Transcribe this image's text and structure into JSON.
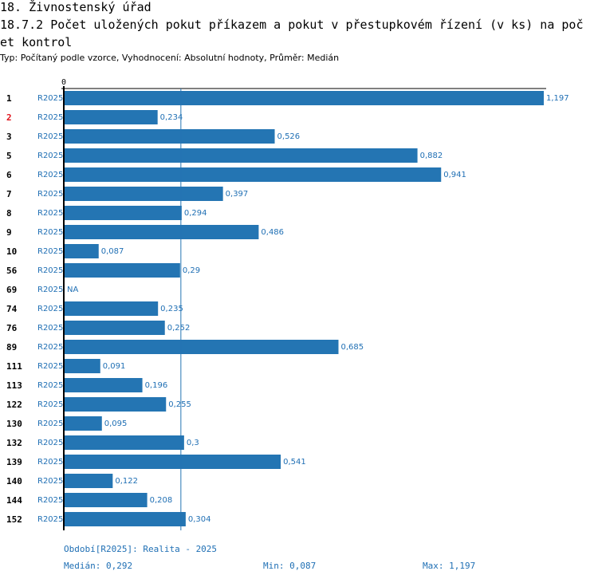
{
  "header": {
    "section_title": "18. Živnostenský úřad",
    "chart_title": "18.7.2 Počet uložených pokut příkazem a pokut v přestupkovém řízení (v ks) na počet kontrol",
    "subtitle": "Typ: Počítaný podle vzorce, Vyhodnocení: Absolutní hodnoty, Průměr: Medián"
  },
  "chart_data": {
    "type": "bar",
    "orientation": "horizontal",
    "title": "18.7.2 Počet uložených pokut příkazem a pokut v přestupkovém řízení (v ks) na počet kontrol",
    "axis_zero_label": "0",
    "xlim": [
      0,
      1.197
    ],
    "median": 0.292,
    "highlighted_row": "2",
    "colors": {
      "bar": "#2475b3",
      "label": "#1f6fb4",
      "highlight": "#e0141c",
      "axis": "#000000"
    },
    "rows": [
      {
        "id": "1",
        "period": "R2025",
        "value": 1.197,
        "label": "1,197"
      },
      {
        "id": "2",
        "period": "R2025",
        "value": 0.234,
        "label": "0,234"
      },
      {
        "id": "3",
        "period": "R2025",
        "value": 0.526,
        "label": "0,526"
      },
      {
        "id": "5",
        "period": "R2025",
        "value": 0.882,
        "label": "0,882"
      },
      {
        "id": "6",
        "period": "R2025",
        "value": 0.941,
        "label": "0,941"
      },
      {
        "id": "7",
        "period": "R2025",
        "value": 0.397,
        "label": "0,397"
      },
      {
        "id": "8",
        "period": "R2025",
        "value": 0.294,
        "label": "0,294"
      },
      {
        "id": "9",
        "period": "R2025",
        "value": 0.486,
        "label": "0,486"
      },
      {
        "id": "10",
        "period": "R2025",
        "value": 0.087,
        "label": "0,087"
      },
      {
        "id": "56",
        "period": "R2025",
        "value": 0.29,
        "label": "0,29"
      },
      {
        "id": "69",
        "period": "R2025",
        "value": null,
        "label": "NA"
      },
      {
        "id": "74",
        "period": "R2025",
        "value": 0.235,
        "label": "0,235"
      },
      {
        "id": "76",
        "period": "R2025",
        "value": 0.252,
        "label": "0,252"
      },
      {
        "id": "89",
        "period": "R2025",
        "value": 0.685,
        "label": "0,685"
      },
      {
        "id": "111",
        "period": "R2025",
        "value": 0.091,
        "label": "0,091"
      },
      {
        "id": "113",
        "period": "R2025",
        "value": 0.196,
        "label": "0,196"
      },
      {
        "id": "122",
        "period": "R2025",
        "value": 0.255,
        "label": "0,255"
      },
      {
        "id": "130",
        "period": "R2025",
        "value": 0.095,
        "label": "0,095"
      },
      {
        "id": "132",
        "period": "R2025",
        "value": 0.3,
        "label": "0,3"
      },
      {
        "id": "139",
        "period": "R2025",
        "value": 0.541,
        "label": "0,541"
      },
      {
        "id": "140",
        "period": "R2025",
        "value": 0.122,
        "label": "0,122"
      },
      {
        "id": "144",
        "period": "R2025",
        "value": 0.208,
        "label": "0,208"
      },
      {
        "id": "152",
        "period": "R2025",
        "value": 0.304,
        "label": "0,304"
      }
    ]
  },
  "footer": {
    "period_note": "Období[R2025]: Realita - 2025",
    "median_text": "Medián: 0,292",
    "min_text": "Min: 0,087",
    "max_text": "Max: 1,197"
  }
}
